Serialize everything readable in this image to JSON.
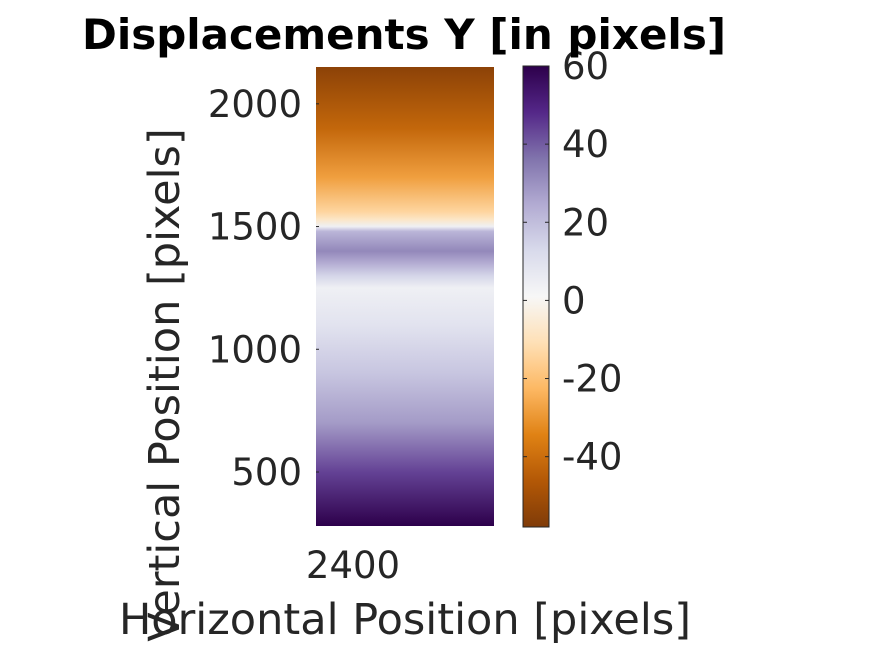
{
  "chart_data": {
    "type": "heatmap",
    "title": "Displacements Y [in pixels]",
    "xlabel": "Horizontal Position [pixels]",
    "ylabel": "Vertical Position [pixels]",
    "x_ticks": [
      2400
    ],
    "x_tick_labels": [
      "2400"
    ],
    "y_ticks": [
      500,
      1000,
      1500,
      2000
    ],
    "y_tick_labels": [
      "500",
      "1000",
      "1500",
      "2000"
    ],
    "ylim": [
      280,
      2150
    ],
    "colorbar": {
      "clim": [
        -58,
        60
      ],
      "ticks": [
        -40,
        -20,
        0,
        20,
        40,
        60
      ],
      "tick_labels": [
        "-40",
        "-20",
        "0",
        "20",
        "40",
        "60"
      ],
      "colormap": "PuOr",
      "colors": [
        "#7f3b08",
        "#b35806",
        "#e08214",
        "#fdb863",
        "#fee0b6",
        "#f7f7f7",
        "#d8daeb",
        "#b2abd2",
        "#8073ac",
        "#542788",
        "#2d004b"
      ]
    },
    "profile": {
      "y": [
        280,
        500,
        700,
        900,
        1100,
        1250,
        1300,
        1350,
        1400,
        1480,
        1500,
        1530,
        1560,
        1700,
        1900,
        2150
      ],
      "value": [
        60,
        44,
        28,
        18,
        9,
        4,
        14,
        24,
        32,
        22,
        4,
        -8,
        -14,
        -28,
        -42,
        -55
      ]
    },
    "grid": false
  }
}
